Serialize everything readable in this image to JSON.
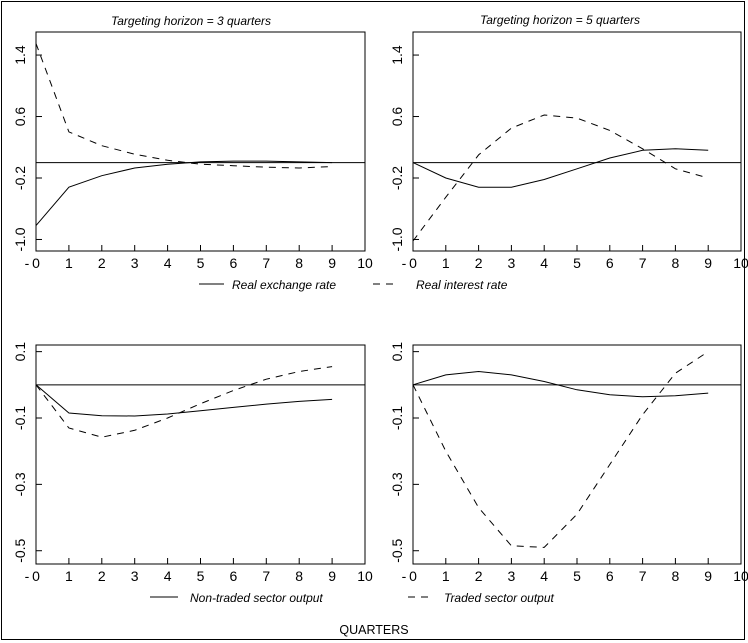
{
  "chart_data": [
    {
      "type": "line",
      "title": "Targeting horizon = 3 quarters",
      "x": [
        0,
        1,
        2,
        3,
        4,
        5,
        6,
        7,
        8,
        9
      ],
      "xlim": [
        0,
        10
      ],
      "ylim": [
        -1.15,
        1.7
      ],
      "x_ticks": [
        0,
        1,
        2,
        3,
        4,
        5,
        6,
        7,
        8,
        9,
        10
      ],
      "y_ticks": [
        -1.0,
        -0.2,
        0.6,
        1.4
      ],
      "y_tick_labels": [
        "-1.0",
        "-0.2",
        "0.6",
        "1.4"
      ],
      "reference_line": 0,
      "series": [
        {
          "style": "solid",
          "values": [
            -0.82,
            -0.32,
            -0.17,
            -0.07,
            -0.02,
            0.01,
            0.02,
            0.02,
            0.01,
            0.0
          ]
        },
        {
          "style": "dashed",
          "values": [
            1.55,
            0.4,
            0.22,
            0.11,
            0.03,
            -0.02,
            -0.04,
            -0.06,
            -0.07,
            -0.05
          ]
        }
      ]
    },
    {
      "type": "line",
      "title": "Targeting horizon = 5 quarters",
      "x": [
        0,
        1,
        2,
        3,
        4,
        5,
        6,
        7,
        8,
        9
      ],
      "xlim": [
        0,
        10
      ],
      "ylim": [
        -1.15,
        1.7
      ],
      "x_ticks": [
        0,
        1,
        2,
        3,
        4,
        5,
        6,
        7,
        8,
        9,
        10
      ],
      "y_ticks": [
        -1.0,
        -0.2,
        0.6,
        1.4
      ],
      "y_tick_labels": [
        "-1.0",
        "-0.2",
        "0.6",
        "1.4"
      ],
      "reference_line": 0,
      "series": [
        {
          "style": "solid",
          "values": [
            0.0,
            -0.2,
            -0.32,
            -0.32,
            -0.22,
            -0.08,
            0.06,
            0.16,
            0.18,
            0.16
          ]
        },
        {
          "style": "dashed",
          "values": [
            -1.02,
            -0.45,
            0.1,
            0.45,
            0.62,
            0.58,
            0.42,
            0.18,
            -0.08,
            -0.2
          ]
        }
      ]
    },
    {
      "type": "line",
      "x": [
        0,
        1,
        2,
        3,
        4,
        5,
        6,
        7,
        8,
        9
      ],
      "xlim": [
        0,
        10
      ],
      "ylim": [
        -0.54,
        0.12
      ],
      "x_ticks": [
        0,
        1,
        2,
        3,
        4,
        5,
        6,
        7,
        8,
        9,
        10
      ],
      "y_ticks": [
        -0.5,
        -0.3,
        -0.1,
        0.1
      ],
      "y_tick_labels": [
        "-0.5",
        "-0.3",
        "-0.1",
        "0.1"
      ],
      "reference_line": 0,
      "series": [
        {
          "style": "solid",
          "values": [
            0.0,
            -0.085,
            -0.093,
            -0.094,
            -0.088,
            -0.078,
            -0.068,
            -0.058,
            -0.05,
            -0.044
          ]
        },
        {
          "style": "dashed",
          "values": [
            0.0,
            -0.13,
            -0.158,
            -0.137,
            -0.1,
            -0.057,
            -0.017,
            0.017,
            0.04,
            0.055
          ]
        }
      ]
    },
    {
      "type": "line",
      "x": [
        0,
        1,
        2,
        3,
        4,
        5,
        6,
        7,
        8,
        9
      ],
      "xlim": [
        0,
        10
      ],
      "ylim": [
        -0.54,
        0.12
      ],
      "x_ticks": [
        0,
        1,
        2,
        3,
        4,
        5,
        6,
        7,
        8,
        9,
        10
      ],
      "y_ticks": [
        -0.5,
        -0.3,
        -0.1,
        0.1
      ],
      "y_tick_labels": [
        "-0.5",
        "-0.3",
        "-0.1",
        "0.1"
      ],
      "reference_line": 0,
      "series": [
        {
          "style": "solid",
          "values": [
            0.0,
            0.03,
            0.04,
            0.03,
            0.01,
            -0.015,
            -0.03,
            -0.036,
            -0.033,
            -0.025
          ]
        },
        {
          "style": "dashed",
          "values": [
            0.0,
            -0.2,
            -0.37,
            -0.485,
            -0.49,
            -0.39,
            -0.24,
            -0.09,
            0.035,
            0.1
          ]
        }
      ]
    }
  ],
  "legends": {
    "row1_left": "Real exchange rate",
    "row1_right": "Real interest rate",
    "row2_left": "Non-traded sector output",
    "row2_right": "Traded sector output"
  },
  "x_axis_label": "QUARTERS"
}
